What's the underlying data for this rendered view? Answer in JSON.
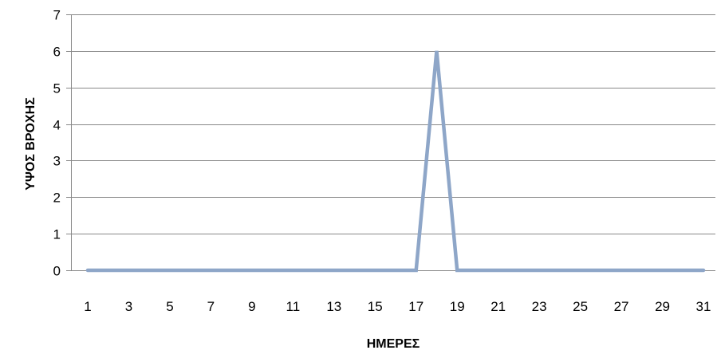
{
  "chart_data": {
    "type": "line",
    "title": "",
    "xlabel": "ΗΜΕΡΕΣ",
    "ylabel": "ΥΨΟΣ ΒΡΟΧΗΣ",
    "x": [
      1,
      2,
      3,
      4,
      5,
      6,
      7,
      8,
      9,
      10,
      11,
      12,
      13,
      14,
      15,
      16,
      17,
      18,
      19,
      20,
      21,
      22,
      23,
      24,
      25,
      26,
      27,
      28,
      29,
      30,
      31
    ],
    "x_tick_labels": [
      "1",
      "3",
      "5",
      "7",
      "9",
      "11",
      "13",
      "15",
      "17",
      "19",
      "21",
      "23",
      "25",
      "27",
      "29",
      "31"
    ],
    "y_tick_labels": [
      "0",
      "1",
      "2",
      "3",
      "4",
      "5",
      "6",
      "7"
    ],
    "series": [
      {
        "values": [
          0,
          0,
          0,
          0,
          0,
          0,
          0,
          0,
          0,
          0,
          0,
          0,
          0,
          0,
          0,
          0,
          0,
          6,
          0,
          0,
          0,
          0,
          0,
          0,
          0,
          0,
          0,
          0,
          0,
          0,
          0
        ]
      }
    ],
    "xlim": [
      1,
      31
    ],
    "ylim": [
      0,
      7
    ],
    "grid": "horizontal",
    "legend": "none",
    "colors": {
      "line": "#8EA6C8",
      "grid": "#888888",
      "text": "#000000"
    }
  }
}
